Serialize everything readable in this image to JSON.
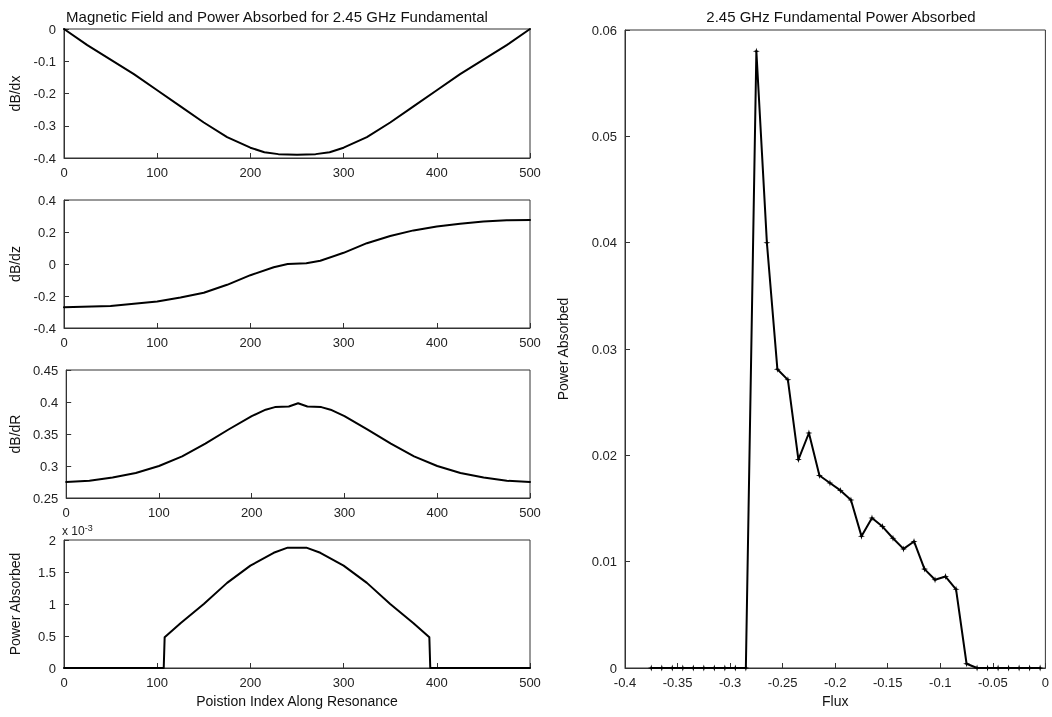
{
  "chart_data": [
    {
      "type": "line",
      "title": "Magnetic Field and Power Absorbed for 2.45 GHz Fundamental",
      "ylabel": "dB/dx",
      "xlim": [
        0,
        500
      ],
      "xticks": [
        0,
        100,
        200,
        300,
        400,
        500
      ],
      "ylim": [
        -0.4,
        0
      ],
      "yticks": [
        -0.4,
        -0.3,
        -0.2,
        -0.1,
        0
      ],
      "grid": false,
      "marker": "none",
      "line_style": "solid",
      "series": [
        {
          "color": "#000000",
          "x": [
            0,
            25,
            50,
            75,
            100,
            125,
            150,
            175,
            200,
            215,
            230,
            250,
            270,
            285,
            300,
            325,
            350,
            375,
            400,
            425,
            450,
            475,
            500
          ],
          "values": [
            0,
            -0.05,
            -0.095,
            -0.14,
            -0.19,
            -0.24,
            -0.29,
            -0.335,
            -0.368,
            -0.382,
            -0.388,
            -0.39,
            -0.388,
            -0.382,
            -0.368,
            -0.335,
            -0.29,
            -0.24,
            -0.19,
            -0.14,
            -0.095,
            -0.05,
            0
          ]
        }
      ]
    },
    {
      "type": "line",
      "ylabel": "dB/dz",
      "xlim": [
        0,
        500
      ],
      "xticks": [
        0,
        100,
        200,
        300,
        400,
        500
      ],
      "ylim": [
        -0.4,
        0.4
      ],
      "yticks": [
        -0.4,
        -0.2,
        0,
        0.2,
        0.4
      ],
      "grid": false,
      "marker": "none",
      "line_style": "solid",
      "series": [
        {
          "color": "#000000",
          "x": [
            0,
            50,
            100,
            125,
            150,
            175,
            200,
            225,
            240,
            260,
            275,
            300,
            325,
            350,
            375,
            400,
            425,
            450,
            475,
            500
          ],
          "values": [
            -0.27,
            -0.262,
            -0.235,
            -0.21,
            -0.18,
            -0.13,
            -0.07,
            -0.02,
            0,
            0.005,
            0.02,
            0.07,
            0.13,
            0.175,
            0.21,
            0.235,
            0.252,
            0.265,
            0.274,
            0.275
          ]
        }
      ]
    },
    {
      "type": "line",
      "ylabel": "dB/dR",
      "xlim": [
        0,
        500
      ],
      "xticks": [
        0,
        100,
        200,
        300,
        400,
        500
      ],
      "ylim": [
        0.25,
        0.45
      ],
      "yticks": [
        0.25,
        0.3,
        0.35,
        0.4,
        0.45
      ],
      "grid": false,
      "marker": "none",
      "line_style": "solid",
      "series": [
        {
          "color": "#000000",
          "x": [
            0,
            25,
            50,
            75,
            100,
            125,
            150,
            175,
            200,
            215,
            225,
            240,
            250,
            260,
            275,
            285,
            300,
            325,
            350,
            375,
            400,
            425,
            450,
            475,
            500
          ],
          "values": [
            0.275,
            0.277,
            0.282,
            0.289,
            0.3,
            0.315,
            0.335,
            0.357,
            0.378,
            0.388,
            0.392,
            0.393,
            0.398,
            0.393,
            0.392,
            0.388,
            0.378,
            0.357,
            0.335,
            0.315,
            0.3,
            0.289,
            0.282,
            0.277,
            0.275
          ]
        }
      ]
    },
    {
      "type": "line",
      "ylabel": "Power Absorbed",
      "xlabel": "Poistion Index Along Resonance",
      "annotations": [
        "x 10$^{-3}$"
      ],
      "xlim": [
        0,
        500
      ],
      "xticks": [
        0,
        100,
        200,
        300,
        400,
        500
      ],
      "ylim": [
        0,
        2
      ],
      "yticks": [
        0,
        0.5,
        1,
        1.5,
        2
      ],
      "grid": false,
      "marker": "none",
      "line_style": "solid",
      "series": [
        {
          "color": "#000000",
          "x": [
            0,
            107,
            108,
            125,
            150,
            175,
            200,
            225,
            240,
            260,
            275,
            300,
            325,
            350,
            375,
            392,
            393,
            500
          ],
          "values": [
            0,
            0,
            0.48,
            0.7,
            1,
            1.33,
            1.6,
            1.8,
            1.88,
            1.88,
            1.8,
            1.6,
            1.33,
            1,
            0.7,
            0.48,
            0,
            0
          ]
        }
      ]
    },
    {
      "type": "line",
      "title": "2.45 GHz Fundamental Power Absorbed",
      "xlabel": "Flux",
      "ylabel": "Power Absorbed",
      "xlim": [
        -0.4,
        0
      ],
      "xticks": [
        -0.4,
        -0.35,
        -0.3,
        -0.25,
        -0.2,
        -0.15,
        -0.1,
        -0.05,
        0
      ],
      "ylim": [
        0,
        0.06
      ],
      "yticks": [
        0,
        0.01,
        0.02,
        0.03,
        0.04,
        0.05,
        0.06
      ],
      "grid": false,
      "marker": "star",
      "line_style": "solid",
      "series": [
        {
          "color": "#000000",
          "x": [
            -0.375,
            -0.365,
            -0.355,
            -0.345,
            -0.335,
            -0.325,
            -0.315,
            -0.305,
            -0.295,
            -0.285,
            -0.275,
            -0.265,
            -0.255,
            -0.245,
            -0.235,
            -0.225,
            -0.215,
            -0.205,
            -0.195,
            -0.185,
            -0.175,
            -0.165,
            -0.155,
            -0.145,
            -0.135,
            -0.125,
            -0.115,
            -0.105,
            -0.095,
            -0.085,
            -0.075,
            -0.065,
            -0.055,
            -0.045,
            -0.035,
            -0.025,
            -0.015,
            -0.005
          ],
          "values": [
            0,
            0,
            0,
            0,
            0,
            0,
            0,
            0,
            0,
            0,
            0.058,
            0.04,
            0.0281,
            0.0271,
            0.0196,
            0.0221,
            0.0181,
            0.0174,
            0.0167,
            0.0158,
            0.0124,
            0.0141,
            0.0133,
            0.0122,
            0.0112,
            0.0119,
            0.0093,
            0.0083,
            0.0086,
            0.0074,
            0.0004,
            0,
            0,
            0,
            0,
            0,
            0,
            0
          ]
        }
      ]
    }
  ]
}
